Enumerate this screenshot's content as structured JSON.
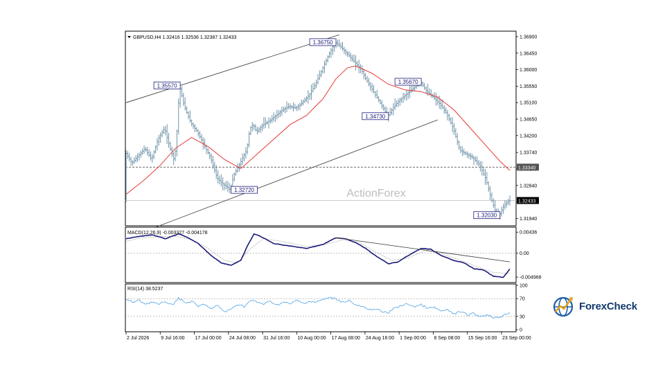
{
  "chart_data": [
    {
      "type": "candlestick",
      "symbol_label": "GBPUSD,H4",
      "ohlc_header": "1.32416 1.32536 1.32387 1.32433",
      "watermark": "ActionForex",
      "ylim": [
        1.3174,
        1.3705
      ],
      "y_ticks": [
        "1.36900",
        "1.36450",
        "1.36000",
        "1.35550",
        "1.35100",
        "1.34650",
        "1.34200",
        "1.33740",
        "1.33290",
        "1.32840",
        "1.32390",
        "1.31940"
      ],
      "y_tick_values": [
        1.369,
        1.3645,
        1.36,
        1.3555,
        1.351,
        1.3465,
        1.342,
        1.3374,
        1.3329,
        1.3284,
        1.3239,
        1.3194
      ],
      "x_tick_labels": [
        "2 Jul 2026",
        "9 Jul 16:00",
        "17 Jul 00:00",
        "24 Jul 08:00",
        "31 Jul 16:00",
        "10 Aug 00:00",
        "17 Aug 08:00",
        "24 Aug 16:00",
        "1 Sep 00:00",
        "8 Sep 08:00",
        "15 Sep 16:00",
        "23 Sep 00:00"
      ],
      "price_path": [
        [
          0,
          1.3375
        ],
        [
          4,
          1.3345
        ],
        [
          8,
          1.3365
        ],
        [
          12,
          1.3385
        ],
        [
          16,
          1.3355
        ],
        [
          20,
          1.341
        ],
        [
          24,
          1.344
        ],
        [
          27,
          1.339
        ],
        [
          30,
          1.335
        ],
        [
          32,
          1.346
        ],
        [
          33,
          1.3557
        ],
        [
          36,
          1.35
        ],
        [
          40,
          1.3455
        ],
        [
          44,
          1.343
        ],
        [
          48,
          1.3395
        ],
        [
          52,
          1.336
        ],
        [
          56,
          1.3305
        ],
        [
          59,
          1.329
        ],
        [
          62,
          1.328
        ],
        [
          64,
          1.3272
        ],
        [
          66,
          1.331
        ],
        [
          70,
          1.3345
        ],
        [
          74,
          1.338
        ],
        [
          76,
          1.344
        ],
        [
          78,
          1.345
        ],
        [
          80,
          1.343
        ],
        [
          84,
          1.345
        ],
        [
          88,
          1.346
        ],
        [
          92,
          1.3475
        ],
        [
          96,
          1.349
        ],
        [
          100,
          1.35
        ],
        [
          104,
          1.3495
        ],
        [
          108,
          1.351
        ],
        [
          112,
          1.353
        ],
        [
          116,
          1.356
        ],
        [
          120,
          1.36
        ],
        [
          124,
          1.364
        ],
        [
          128,
          1.3675
        ],
        [
          132,
          1.366
        ],
        [
          136,
          1.364
        ],
        [
          140,
          1.362
        ],
        [
          144,
          1.36
        ],
        [
          146,
          1.358
        ],
        [
          150,
          1.355
        ],
        [
          154,
          1.352
        ],
        [
          158,
          1.349
        ],
        [
          160,
          1.3473
        ],
        [
          164,
          1.35
        ],
        [
          168,
          1.352
        ],
        [
          172,
          1.3535
        ],
        [
          176,
          1.355
        ],
        [
          180,
          1.3567
        ],
        [
          184,
          1.354
        ],
        [
          188,
          1.3525
        ],
        [
          192,
          1.3505
        ],
        [
          196,
          1.348
        ],
        [
          200,
          1.344
        ],
        [
          204,
          1.338
        ],
        [
          208,
          1.337
        ],
        [
          212,
          1.336
        ],
        [
          216,
          1.334
        ],
        [
          220,
          1.33
        ],
        [
          223,
          1.325
        ],
        [
          226,
          1.321
        ],
        [
          228,
          1.3203
        ],
        [
          231,
          1.323
        ],
        [
          234,
          1.3243
        ]
      ],
      "sma_path": [
        [
          0,
          1.326
        ],
        [
          10,
          1.3295
        ],
        [
          20,
          1.3335
        ],
        [
          30,
          1.3385
        ],
        [
          40,
          1.3415
        ],
        [
          50,
          1.339
        ],
        [
          60,
          1.3355
        ],
        [
          70,
          1.333
        ],
        [
          80,
          1.337
        ],
        [
          90,
          1.341
        ],
        [
          100,
          1.345
        ],
        [
          110,
          1.3475
        ],
        [
          120,
          1.352
        ],
        [
          128,
          1.3575
        ],
        [
          135,
          1.3605
        ],
        [
          140,
          1.361
        ],
        [
          150,
          1.359
        ],
        [
          160,
          1.356
        ],
        [
          170,
          1.3545
        ],
        [
          180,
          1.354
        ],
        [
          190,
          1.3525
        ],
        [
          200,
          1.349
        ],
        [
          210,
          1.344
        ],
        [
          220,
          1.339
        ],
        [
          228,
          1.335
        ],
        [
          234,
          1.3325
        ]
      ],
      "channel_upper": [
        [
          0,
          1.351
        ],
        [
          130,
          1.3695
        ]
      ],
      "channel_lower": [
        [
          15,
          1.3165
        ],
        [
          190,
          1.3463
        ]
      ],
      "annotations": [
        {
          "text": "1.35570",
          "i": 33,
          "value": 1.3557
        },
        {
          "text": "1.32720",
          "i": 64,
          "value": 1.3272
        },
        {
          "text": "1.36750",
          "i": 128,
          "value": 1.3675
        },
        {
          "text": "1.34730",
          "i": 160,
          "value": 1.3473
        },
        {
          "text": "1.35670",
          "i": 180,
          "value": 1.3567
        },
        {
          "text": "1.32030",
          "i": 228,
          "value": 1.3203
        }
      ],
      "horizontal_levels": [
        {
          "value": 1.3334,
          "label": "1.33340",
          "style": "dashed"
        },
        {
          "value": 1.3243,
          "label": "1.32433",
          "style": "solid"
        }
      ],
      "n_bars": 235
    },
    {
      "type": "line",
      "indicator_label": "MACD(12,26,9) -0.003327 -0.004178",
      "ylim": [
        -0.0061,
        0.0054
      ],
      "y_ticks": [
        "0.00436",
        "0.00",
        "-0.004968"
      ],
      "y_tick_values": [
        0.00436,
        0.0,
        -0.004968
      ],
      "macd_path": [
        [
          0,
          0.003
        ],
        [
          8,
          0.0035
        ],
        [
          16,
          0.0038
        ],
        [
          24,
          0.003
        ],
        [
          32,
          0.004
        ],
        [
          36,
          0.0035
        ],
        [
          44,
          0.002
        ],
        [
          52,
          -0.0005
        ],
        [
          58,
          -0.002
        ],
        [
          64,
          -0.0025
        ],
        [
          70,
          -0.0015
        ],
        [
          74,
          0.0015
        ],
        [
          78,
          0.004
        ],
        [
          82,
          0.0035
        ],
        [
          90,
          0.002
        ],
        [
          100,
          0.0015
        ],
        [
          110,
          0.001
        ],
        [
          120,
          0.0018
        ],
        [
          128,
          0.0032
        ],
        [
          134,
          0.003
        ],
        [
          140,
          0.0022
        ],
        [
          146,
          0.001
        ],
        [
          152,
          -0.0005
        ],
        [
          160,
          -0.0022
        ],
        [
          166,
          -0.0018
        ],
        [
          172,
          -0.0005
        ],
        [
          180,
          0.001
        ],
        [
          186,
          0.0008
        ],
        [
          192,
          -0.0005
        ],
        [
          200,
          -0.0015
        ],
        [
          206,
          -0.002
        ],
        [
          212,
          -0.0032
        ],
        [
          218,
          -0.0035
        ],
        [
          224,
          -0.0048
        ],
        [
          230,
          -0.005
        ],
        [
          234,
          -0.0033
        ]
      ],
      "signal_path": [
        [
          0,
          0.0025
        ],
        [
          10,
          0.0032
        ],
        [
          20,
          0.0034
        ],
        [
          30,
          0.0035
        ],
        [
          40,
          0.0028
        ],
        [
          50,
          0.001
        ],
        [
          60,
          -0.0015
        ],
        [
          68,
          -0.002
        ],
        [
          76,
          0.001
        ],
        [
          84,
          0.003
        ],
        [
          94,
          0.0025
        ],
        [
          110,
          0.0014
        ],
        [
          124,
          0.002
        ],
        [
          132,
          0.0028
        ],
        [
          142,
          0.0022
        ],
        [
          152,
          0.0003
        ],
        [
          162,
          -0.0015
        ],
        [
          172,
          -0.001
        ],
        [
          182,
          0.0005
        ],
        [
          192,
          0.0
        ],
        [
          204,
          -0.0015
        ],
        [
          214,
          -0.0028
        ],
        [
          224,
          -0.004
        ],
        [
          234,
          -0.0042
        ]
      ],
      "trendline": [
        [
          128,
          0.0032
        ],
        [
          234,
          -0.0018
        ]
      ]
    },
    {
      "type": "line",
      "indicator_label": "RSI(14) 38.5237",
      "ylim": [
        0,
        100
      ],
      "y_ticks": [
        "100",
        "70",
        "30",
        "0"
      ],
      "y_tick_values": [
        100,
        70,
        30,
        0
      ],
      "rsi_path": [
        [
          0,
          68
        ],
        [
          4,
          62
        ],
        [
          8,
          66
        ],
        [
          12,
          58
        ],
        [
          16,
          63
        ],
        [
          20,
          56
        ],
        [
          24,
          64
        ],
        [
          28,
          55
        ],
        [
          32,
          72
        ],
        [
          36,
          60
        ],
        [
          40,
          64
        ],
        [
          44,
          52
        ],
        [
          48,
          58
        ],
        [
          52,
          46
        ],
        [
          56,
          55
        ],
        [
          60,
          40
        ],
        [
          64,
          46
        ],
        [
          68,
          58
        ],
        [
          72,
          52
        ],
        [
          76,
          66
        ],
        [
          80,
          62
        ],
        [
          84,
          58
        ],
        [
          88,
          64
        ],
        [
          92,
          56
        ],
        [
          96,
          62
        ],
        [
          100,
          58
        ],
        [
          104,
          66
        ],
        [
          108,
          60
        ],
        [
          112,
          64
        ],
        [
          116,
          62
        ],
        [
          120,
          68
        ],
        [
          124,
          72
        ],
        [
          128,
          70
        ],
        [
          132,
          62
        ],
        [
          136,
          66
        ],
        [
          140,
          55
        ],
        [
          144,
          52
        ],
        [
          148,
          44
        ],
        [
          152,
          48
        ],
        [
          156,
          40
        ],
        [
          160,
          38
        ],
        [
          164,
          50
        ],
        [
          168,
          54
        ],
        [
          172,
          58
        ],
        [
          176,
          52
        ],
        [
          180,
          56
        ],
        [
          184,
          48
        ],
        [
          188,
          50
        ],
        [
          192,
          42
        ],
        [
          196,
          44
        ],
        [
          200,
          36
        ],
        [
          204,
          40
        ],
        [
          208,
          34
        ],
        [
          212,
          36
        ],
        [
          216,
          30
        ],
        [
          220,
          34
        ],
        [
          224,
          28
        ],
        [
          228,
          26
        ],
        [
          231,
          36
        ],
        [
          234,
          38.5
        ]
      ]
    }
  ],
  "brand": {
    "name": "ForexCheck"
  },
  "colors": {
    "bull": "#6f93a8",
    "bear": "#6f93a8",
    "sma": "#e53935",
    "macd": "#1a1a7a",
    "signal": "#b0b0b0",
    "rsi": "#4aa0e6",
    "grid": "#000000"
  }
}
